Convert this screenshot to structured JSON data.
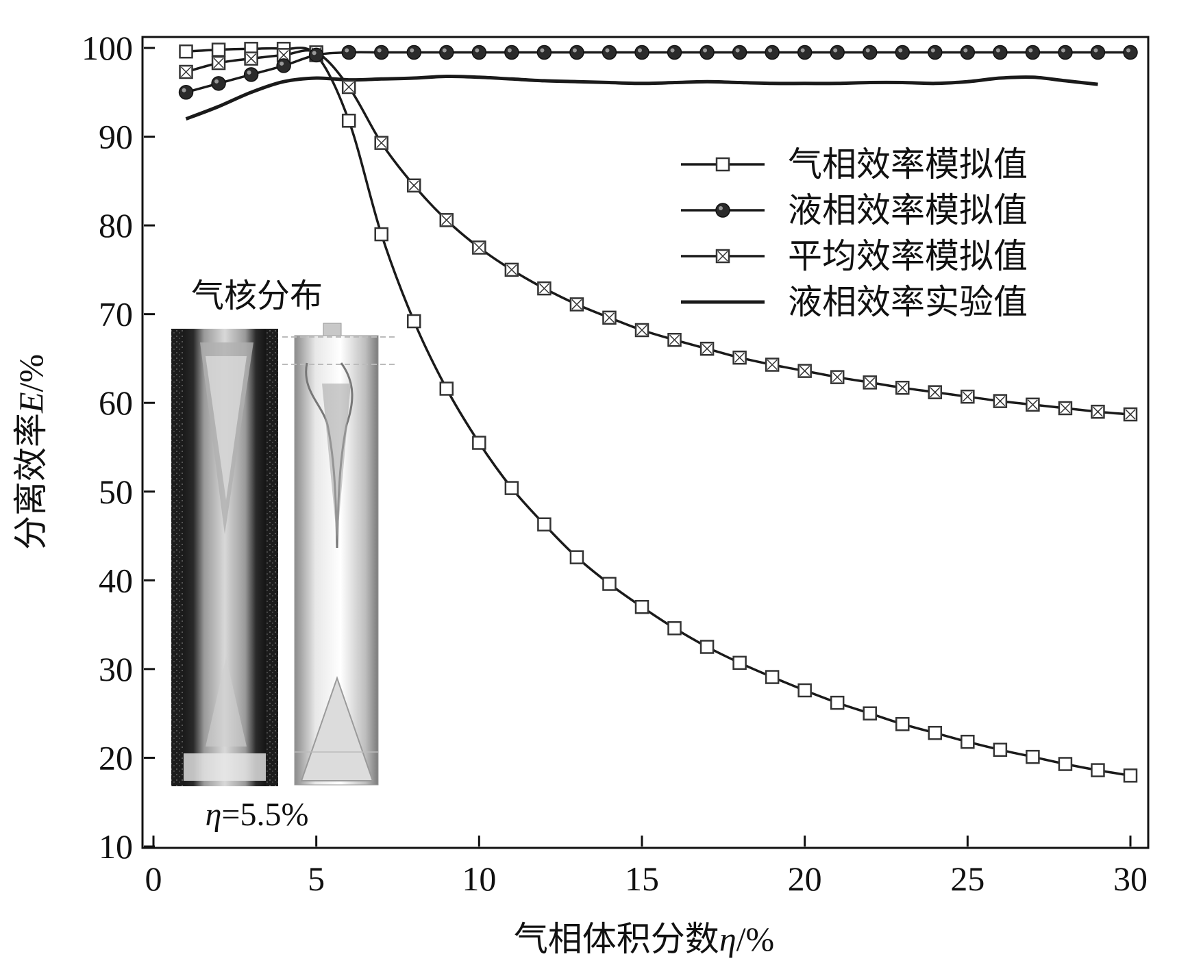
{
  "chart_data": {
    "type": "line",
    "xlabel": {
      "text": "气相体积分数",
      "symbol": "η",
      "unit": "/%"
    },
    "ylabel": {
      "text": "分离效率",
      "symbol": "E",
      "unit": "/%"
    },
    "xlim": [
      0,
      30
    ],
    "ylim": [
      10,
      100
    ],
    "xticks": [
      0,
      5,
      10,
      15,
      20,
      25,
      30
    ],
    "yticks": [
      10,
      20,
      30,
      40,
      50,
      60,
      70,
      80,
      90,
      100
    ],
    "grid": false,
    "legend_position": "upper-right",
    "series": [
      {
        "name": "气相效率模拟值",
        "marker": "open-square",
        "x": [
          1,
          2,
          3,
          4,
          5,
          6,
          7,
          8,
          9,
          10,
          11,
          12,
          13,
          14,
          15,
          16,
          17,
          18,
          19,
          20,
          21,
          22,
          23,
          24,
          25,
          26,
          27,
          28,
          29,
          30
        ],
        "values": [
          99.6,
          99.8,
          99.9,
          99.9,
          99.2,
          91.8,
          79.0,
          69.2,
          61.6,
          55.5,
          50.4,
          46.3,
          42.6,
          39.6,
          37.0,
          34.6,
          32.5,
          30.7,
          29.1,
          27.6,
          26.2,
          25.0,
          23.8,
          22.8,
          21.8,
          20.9,
          20.1,
          19.3,
          18.6,
          18.0
        ]
      },
      {
        "name": "液相效率模拟值",
        "marker": "filled-circle",
        "x": [
          1,
          2,
          3,
          4,
          5,
          6,
          7,
          8,
          9,
          10,
          11,
          12,
          13,
          14,
          15,
          16,
          17,
          18,
          19,
          20,
          21,
          22,
          23,
          24,
          25,
          26,
          27,
          28,
          29,
          30
        ],
        "values": [
          95.0,
          96.0,
          97.0,
          98.0,
          99.2,
          99.5,
          99.5,
          99.5,
          99.5,
          99.5,
          99.5,
          99.5,
          99.5,
          99.5,
          99.5,
          99.5,
          99.5,
          99.5,
          99.5,
          99.5,
          99.5,
          99.5,
          99.5,
          99.5,
          99.5,
          99.5,
          99.5,
          99.5,
          99.5,
          99.5
        ]
      },
      {
        "name": "平均效率模拟值",
        "marker": "crossed-square",
        "x": [
          1,
          2,
          3,
          4,
          5,
          6,
          7,
          8,
          9,
          10,
          11,
          12,
          13,
          14,
          15,
          16,
          17,
          18,
          19,
          20,
          21,
          22,
          23,
          24,
          25,
          26,
          27,
          28,
          29,
          30
        ],
        "values": [
          97.3,
          98.3,
          98.8,
          99.2,
          99.5,
          95.6,
          89.3,
          84.5,
          80.6,
          77.5,
          75.0,
          72.9,
          71.1,
          69.6,
          68.2,
          67.1,
          66.1,
          65.1,
          64.3,
          63.6,
          62.9,
          62.3,
          61.7,
          61.2,
          60.7,
          60.2,
          59.8,
          59.4,
          59.0,
          58.7
        ]
      },
      {
        "name": "液相效率实验值",
        "marker": "none",
        "x": [
          1,
          2,
          3,
          4,
          5,
          6,
          7,
          8,
          9,
          10,
          11,
          12,
          13,
          14,
          15,
          16,
          17,
          18,
          19,
          20,
          21,
          22,
          23,
          24,
          25,
          26,
          27,
          28,
          29
        ],
        "values": [
          92.0,
          93.4,
          95.0,
          96.2,
          96.6,
          96.4,
          96.5,
          96.6,
          96.8,
          96.7,
          96.5,
          96.3,
          96.2,
          96.1,
          96.0,
          96.1,
          96.2,
          96.1,
          96.0,
          96.0,
          96.0,
          96.1,
          96.1,
          96.0,
          96.2,
          96.6,
          96.7,
          96.3,
          95.9
        ]
      }
    ],
    "inset": {
      "title": "气核分布",
      "caption": {
        "symbol": "η",
        "text": "=5.5%"
      }
    }
  }
}
